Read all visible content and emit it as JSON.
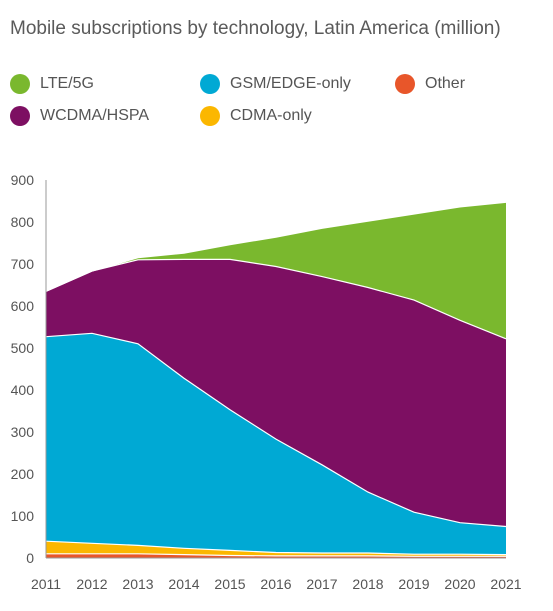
{
  "chart_data": {
    "type": "area",
    "title": "Mobile subscriptions by technology, Latin America (million)",
    "stacked": true,
    "x": [
      "2011",
      "2012",
      "2013",
      "2014",
      "2015",
      "2016",
      "2017",
      "2018",
      "2019",
      "2020",
      "2021"
    ],
    "ylim": [
      0,
      900
    ],
    "yticks": [
      0,
      100,
      200,
      300,
      400,
      500,
      600,
      700,
      800,
      900
    ],
    "grid": false,
    "legend_position": "top",
    "series": [
      {
        "name": "Other",
        "color": "#e8562a",
        "values": [
          10,
          10,
          10,
          8,
          6,
          5,
          5,
          5,
          4,
          4,
          4
        ]
      },
      {
        "name": "CDMA-only",
        "color": "#fbb700",
        "values": [
          30,
          25,
          20,
          15,
          12,
          8,
          7,
          7,
          5,
          5,
          4
        ]
      },
      {
        "name": "GSM/EDGE-only",
        "color": "#00a9d4",
        "values": [
          487,
          500,
          480,
          405,
          335,
          270,
          210,
          145,
          100,
          75,
          67
        ]
      },
      {
        "name": "WCDMA/HSPA",
        "color": "#7d0f62",
        "values": [
          108,
          148,
          200,
          283,
          358,
          411,
          448,
          487,
          505,
          482,
          447
        ]
      },
      {
        "name": "LTE/5G",
        "color": "#7ab82e",
        "values": [
          0,
          0,
          5,
          15,
          35,
          70,
          115,
          158,
          205,
          270,
          325
        ]
      }
    ]
  }
}
